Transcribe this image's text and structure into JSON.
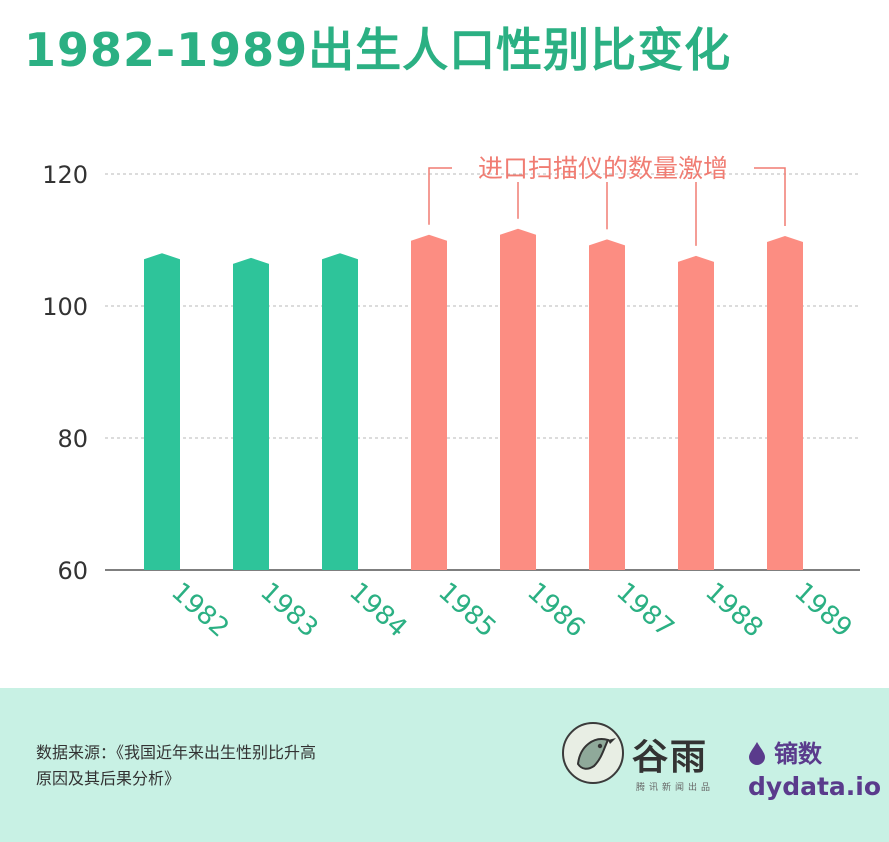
{
  "title": "1982-1989出生人口性别比变化",
  "chart_data": {
    "type": "bar",
    "categories": [
      "1982",
      "1983",
      "1984",
      "1985",
      "1986",
      "1987",
      "1988",
      "1989"
    ],
    "values": [
      108.0,
      107.3,
      108.0,
      110.8,
      111.7,
      110.1,
      107.6,
      110.6
    ],
    "ylim": [
      60,
      120
    ],
    "yticks": [
      60,
      80,
      100,
      120
    ],
    "grid": true,
    "colors": [
      "#2ec49a",
      "#2ec49a",
      "#2ec49a",
      "#fc8d82",
      "#fc8d82",
      "#fc8d82",
      "#fc8d82",
      "#fc8d82"
    ],
    "annotation": "进口扫描仪的数量激增",
    "annotation_color": "#f07c72",
    "tick_label_color": "#2bb083"
  },
  "footer": {
    "source_line1": "数据来源：《我国近年来出生性别比升高",
    "source_line2": "原因及其后果分析》",
    "brand1": "谷雨",
    "brand1_sub": "腾讯新闻出品",
    "brand2_cn": "镝数",
    "brand2_en": "dydata.io"
  }
}
